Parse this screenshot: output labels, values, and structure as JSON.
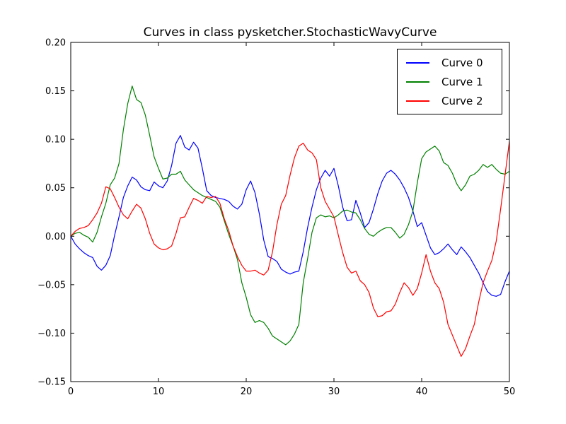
{
  "page": {
    "background": "#ffffff"
  },
  "chart_data": {
    "type": "line",
    "title": "Curves in class pysketcher.StochasticWavyCurve",
    "xlabel": "",
    "ylabel": "",
    "xlim": [
      0,
      50
    ],
    "ylim": [
      -0.15,
      0.2
    ],
    "grid": false,
    "x_ticks": [
      0,
      10,
      20,
      30,
      40,
      50
    ],
    "x_tick_labels": [
      "0",
      "10",
      "20",
      "30",
      "40",
      "50"
    ],
    "y_ticks": [
      -0.15,
      -0.1,
      -0.05,
      0.0,
      0.05,
      0.1,
      0.15,
      0.2
    ],
    "y_tick_labels": [
      "−0.15",
      "−0.10",
      "−0.05",
      "0.00",
      "0.05",
      "0.10",
      "0.15",
      "0.20"
    ],
    "axis_color": "#000000",
    "legend": {
      "position": "upper right",
      "entries": [
        {
          "label": "Curve 0",
          "color": "#0000ff"
        },
        {
          "label": "Curve 1",
          "color": "#008000"
        },
        {
          "label": "Curve 2",
          "color": "#ff0000"
        }
      ]
    },
    "x_start": 0,
    "x_step": 0.5,
    "series": [
      {
        "name": "Curve 0",
        "color": "#0000ff",
        "values": [
          0,
          -0.008,
          -0.013,
          -0.017,
          -0.02,
          -0.022,
          -0.031,
          -0.035,
          -0.03,
          -0.02,
          0.001,
          0.02,
          0.04,
          0.052,
          0.061,
          0.058,
          0.051,
          0.048,
          0.047,
          0.056,
          0.052,
          0.05,
          0.057,
          0.073,
          0.096,
          0.104,
          0.092,
          0.089,
          0.097,
          0.091,
          0.07,
          0.047,
          0.042,
          0.04,
          0.039,
          0.038,
          0.036,
          0.031,
          0.028,
          0.033,
          0.048,
          0.057,
          0.045,
          0.023,
          -0.004,
          -0.021,
          -0.023,
          -0.026,
          -0.034,
          -0.037,
          -0.039,
          -0.037,
          -0.036,
          -0.016,
          0.009,
          0.03,
          0.048,
          0.06,
          0.068,
          0.062,
          0.07,
          0.052,
          0.03,
          0.016,
          0.017,
          0.037,
          0.024,
          0.009,
          0.014,
          0.028,
          0.044,
          0.057,
          0.065,
          0.068,
          0.064,
          0.058,
          0.05,
          0.04,
          0.026,
          0.01,
          0.014,
          0.001,
          -0.012,
          -0.019,
          -0.017,
          -0.013,
          -0.008,
          -0.014,
          -0.019,
          -0.011,
          -0.016,
          -0.022,
          -0.03,
          -0.038,
          -0.048,
          -0.057,
          -0.061,
          -0.062,
          -0.06,
          -0.047,
          -0.036
        ]
      },
      {
        "name": "Curve 1",
        "color": "#008000",
        "values": [
          0,
          0.003,
          0.004,
          0.001,
          -0.001,
          -0.006,
          0.004,
          0.02,
          0.034,
          0.053,
          0.06,
          0.075,
          0.11,
          0.137,
          0.155,
          0.141,
          0.138,
          0.125,
          0.104,
          0.082,
          0.07,
          0.059,
          0.06,
          0.064,
          0.064,
          0.067,
          0.058,
          0.053,
          0.048,
          0.045,
          0.042,
          0.04,
          0.038,
          0.036,
          0.03,
          0.016,
          0.002,
          -0.01,
          -0.024,
          -0.048,
          -0.063,
          -0.081,
          -0.089,
          -0.087,
          -0.089,
          -0.095,
          -0.103,
          -0.106,
          -0.109,
          -0.112,
          -0.108,
          -0.101,
          -0.091,
          -0.048,
          -0.023,
          0.004,
          0.019,
          0.022,
          0.02,
          0.021,
          0.019,
          0.022,
          0.026,
          0.027,
          0.025,
          0.024,
          0.017,
          0.008,
          0.002,
          0,
          0.004,
          0.007,
          0.009,
          0.009,
          0.004,
          -0.002,
          0.002,
          0.012,
          0.026,
          0.055,
          0.08,
          0.087,
          0.09,
          0.093,
          0.088,
          0.076,
          0.073,
          0.065,
          0.054,
          0.047,
          0.053,
          0.062,
          0.064,
          0.068,
          0.074,
          0.071,
          0.074,
          0.069,
          0.065,
          0.064,
          0.067
        ]
      },
      {
        "name": "Curve 2",
        "color": "#ff0000",
        "values": [
          0,
          0.005,
          0.008,
          0.009,
          0.011,
          0.017,
          0.024,
          0.034,
          0.051,
          0.049,
          0.04,
          0.03,
          0.022,
          0.018,
          0.026,
          0.033,
          0.029,
          0.018,
          0.003,
          -0.008,
          -0.012,
          -0.014,
          -0.013,
          -0.01,
          0.003,
          0.019,
          0.02,
          0.03,
          0.039,
          0.037,
          0.034,
          0.041,
          0.04,
          0.041,
          0.034,
          0.018,
          0.006,
          -0.01,
          -0.021,
          -0.03,
          -0.036,
          -0.036,
          -0.035,
          -0.038,
          -0.04,
          -0.035,
          -0.016,
          0.012,
          0.033,
          0.042,
          0.063,
          0.081,
          0.093,
          0.096,
          0.089,
          0.086,
          0.079,
          0.05,
          0.036,
          0.028,
          0.02,
          0.001,
          -0.017,
          -0.032,
          -0.038,
          -0.036,
          -0.046,
          -0.05,
          -0.058,
          -0.074,
          -0.083,
          -0.082,
          -0.078,
          -0.077,
          -0.07,
          -0.058,
          -0.048,
          -0.053,
          -0.061,
          -0.054,
          -0.038,
          -0.019,
          -0.036,
          -0.048,
          -0.054,
          -0.068,
          -0.091,
          -0.102,
          -0.113,
          -0.124,
          -0.116,
          -0.103,
          -0.091,
          -0.068,
          -0.048,
          -0.036,
          -0.025,
          -0.005,
          0.028,
          0.063,
          0.098
        ]
      }
    ]
  }
}
